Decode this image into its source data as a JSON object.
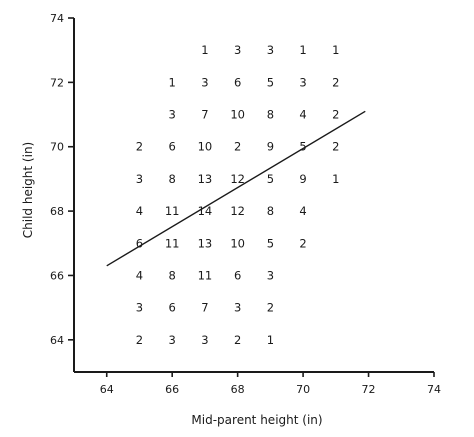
{
  "chart_data": {
    "type": "scatter",
    "xlabel": "Mid-parent height (in)",
    "ylabel": "Child height (in)",
    "xlim": [
      63,
      74
    ],
    "ylim": [
      63,
      74
    ],
    "x_ticks": [
      64,
      66,
      68,
      70,
      72,
      74
    ],
    "y_ticks": [
      64,
      66,
      68,
      70,
      72,
      74
    ],
    "grid": false,
    "counts": [
      {
        "x": 67,
        "y": 73,
        "count": 1
      },
      {
        "x": 68,
        "y": 73,
        "count": 3
      },
      {
        "x": 69,
        "y": 73,
        "count": 3
      },
      {
        "x": 70,
        "y": 73,
        "count": 1
      },
      {
        "x": 71,
        "y": 73,
        "count": 1
      },
      {
        "x": 66,
        "y": 72,
        "count": 1
      },
      {
        "x": 67,
        "y": 72,
        "count": 3
      },
      {
        "x": 68,
        "y": 72,
        "count": 6
      },
      {
        "x": 69,
        "y": 72,
        "count": 5
      },
      {
        "x": 70,
        "y": 72,
        "count": 3
      },
      {
        "x": 71,
        "y": 72,
        "count": 2
      },
      {
        "x": 66,
        "y": 71,
        "count": 3
      },
      {
        "x": 67,
        "y": 71,
        "count": 7
      },
      {
        "x": 68,
        "y": 71,
        "count": 10
      },
      {
        "x": 69,
        "y": 71,
        "count": 8
      },
      {
        "x": 70,
        "y": 71,
        "count": 4
      },
      {
        "x": 71,
        "y": 71,
        "count": 2
      },
      {
        "x": 65,
        "y": 70,
        "count": 2
      },
      {
        "x": 66,
        "y": 70,
        "count": 6
      },
      {
        "x": 67,
        "y": 70,
        "count": 10
      },
      {
        "x": 68,
        "y": 70,
        "count": 2
      },
      {
        "x": 69,
        "y": 70,
        "count": 9
      },
      {
        "x": 70,
        "y": 70,
        "count": 5
      },
      {
        "x": 71,
        "y": 70,
        "count": 2
      },
      {
        "x": 65,
        "y": 69,
        "count": 3
      },
      {
        "x": 66,
        "y": 69,
        "count": 8
      },
      {
        "x": 67,
        "y": 69,
        "count": 13
      },
      {
        "x": 68,
        "y": 69,
        "count": 12
      },
      {
        "x": 69,
        "y": 69,
        "count": 5
      },
      {
        "x": 70,
        "y": 69,
        "count": 9
      },
      {
        "x": 71,
        "y": 69,
        "count": 1
      },
      {
        "x": 65,
        "y": 68,
        "count": 4
      },
      {
        "x": 66,
        "y": 68,
        "count": 11
      },
      {
        "x": 67,
        "y": 68,
        "count": 14
      },
      {
        "x": 68,
        "y": 68,
        "count": 12
      },
      {
        "x": 69,
        "y": 68,
        "count": 8
      },
      {
        "x": 70,
        "y": 68,
        "count": 4
      },
      {
        "x": 65,
        "y": 67,
        "count": 6
      },
      {
        "x": 66,
        "y": 67,
        "count": 11
      },
      {
        "x": 67,
        "y": 67,
        "count": 13
      },
      {
        "x": 68,
        "y": 67,
        "count": 10
      },
      {
        "x": 69,
        "y": 67,
        "count": 5
      },
      {
        "x": 70,
        "y": 67,
        "count": 2
      },
      {
        "x": 65,
        "y": 66,
        "count": 4
      },
      {
        "x": 66,
        "y": 66,
        "count": 8
      },
      {
        "x": 67,
        "y": 66,
        "count": 11
      },
      {
        "x": 68,
        "y": 66,
        "count": 6
      },
      {
        "x": 69,
        "y": 66,
        "count": 3
      },
      {
        "x": 65,
        "y": 65,
        "count": 3
      },
      {
        "x": 66,
        "y": 65,
        "count": 6
      },
      {
        "x": 67,
        "y": 65,
        "count": 7
      },
      {
        "x": 68,
        "y": 65,
        "count": 3
      },
      {
        "x": 69,
        "y": 65,
        "count": 2
      },
      {
        "x": 65,
        "y": 64,
        "count": 2
      },
      {
        "x": 66,
        "y": 64,
        "count": 3
      },
      {
        "x": 67,
        "y": 64,
        "count": 3
      },
      {
        "x": 68,
        "y": 64,
        "count": 2
      },
      {
        "x": 69,
        "y": 64,
        "count": 1
      }
    ],
    "regression_line": {
      "x": [
        64,
        71.9
      ],
      "y": [
        66.3,
        71.1
      ]
    }
  }
}
